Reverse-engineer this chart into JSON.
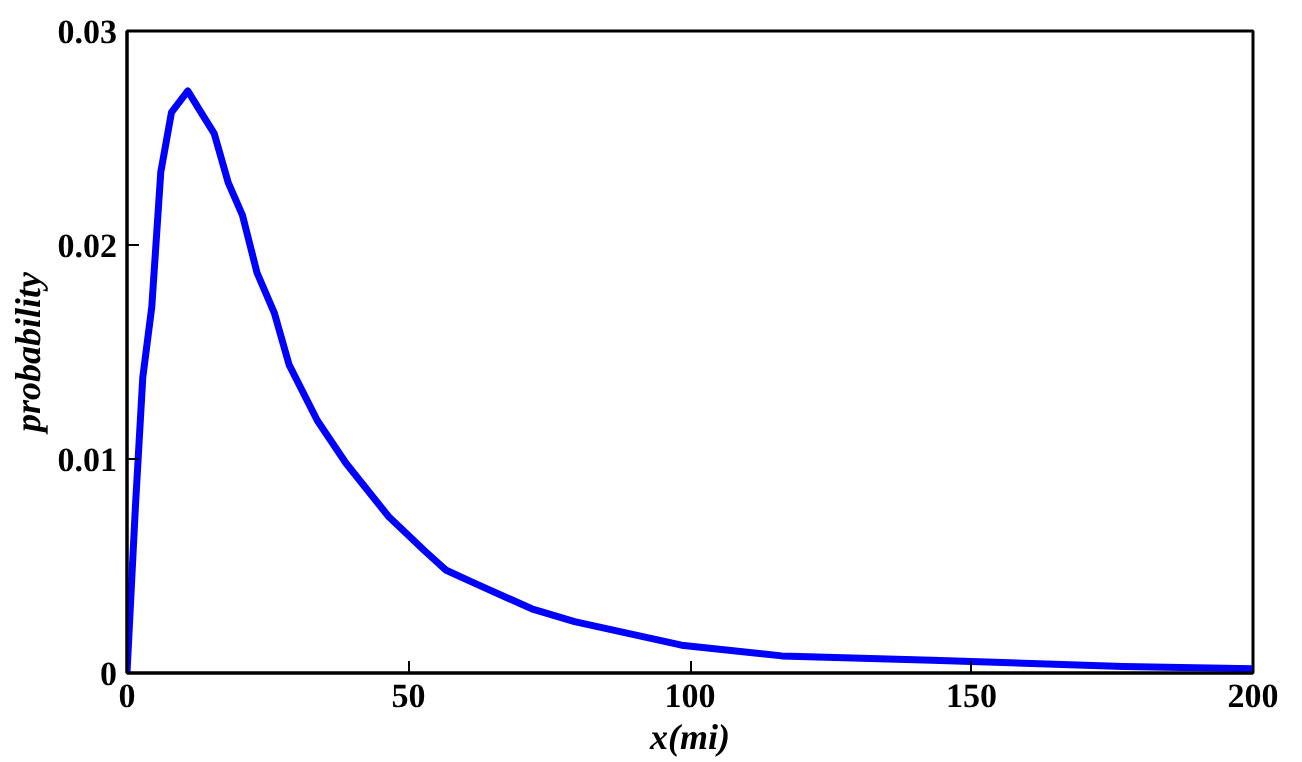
{
  "chart_data": {
    "type": "line",
    "xlabel": "x(mi)",
    "ylabel": "probability",
    "xlim": [
      0,
      200
    ],
    "ylim": [
      0,
      0.03
    ],
    "xticks": [
      0,
      50,
      100,
      150,
      200
    ],
    "yticks": [
      0,
      0.01,
      0.02,
      0.03
    ],
    "marker": "none",
    "line_style": "solid",
    "series": [
      {
        "color": "#0000ff",
        "x": [
          0,
          1.5,
          2.8,
          4.4,
          6.0,
          7.9,
          10.8,
          12.9,
          15.5,
          18.0,
          20.5,
          23.1,
          26.2,
          28.8,
          33.8,
          38.9,
          46.5,
          52.9,
          56.7,
          61.7,
          71.9,
          79.5,
          98.5,
          116.3,
          143,
          177,
          200
        ],
        "values": [
          0,
          0.0078,
          0.0138,
          0.0171,
          0.0234,
          0.0262,
          0.0272,
          0.0263,
          0.0252,
          0.0229,
          0.0214,
          0.0187,
          0.0168,
          0.0144,
          0.0118,
          0.0098,
          0.0073,
          0.0057,
          0.0048,
          0.0042,
          0.003,
          0.0024,
          0.0013,
          0.0008,
          0.0006,
          0.0003,
          0.0002
        ]
      }
    ]
  }
}
